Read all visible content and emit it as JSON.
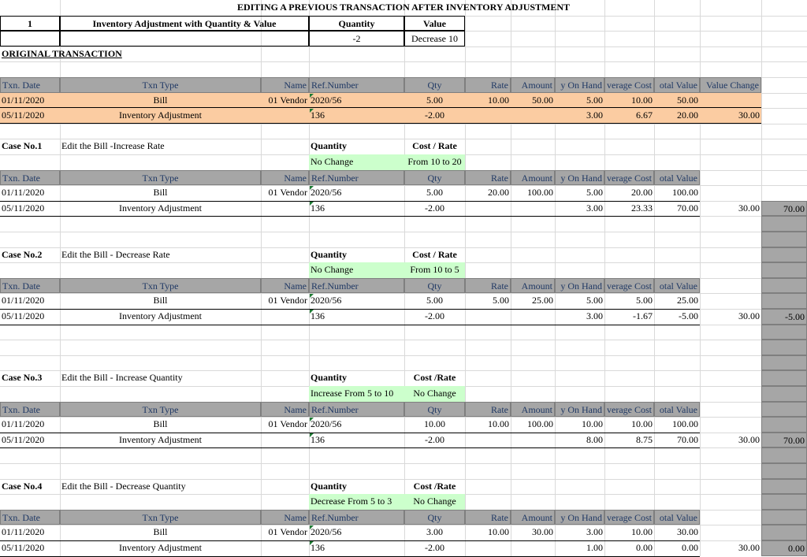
{
  "title": "EDITING A PREVIOUS TRANSACTION AFTER INVENTORY ADJUSTMENT",
  "top": {
    "no": "1",
    "heading": "Inventory Adjustment with Quantity & Value",
    "qty_label": "Quantity",
    "value_label": "Value",
    "qty": "-2",
    "value": "Decrease 10"
  },
  "original_label": "ORIGINAL TRANSACTION",
  "headers": [
    "Txn. Date",
    "Txn Type",
    "Name",
    "Ref.Number",
    "Qty",
    "Rate",
    "Amount",
    "y On Hand",
    "verage Cost",
    "otal Value",
    "Value Change"
  ],
  "original_rows": [
    [
      "01/11/2020",
      "Bill",
      "01 Vendor",
      "2020/56",
      "5.00",
      "10.00",
      "50.00",
      "5.00",
      "10.00",
      "50.00",
      ""
    ],
    [
      "05/11/2020",
      "Inventory Adjustment",
      "",
      "136",
      "-2.00",
      "",
      "",
      "3.00",
      "6.67",
      "20.00",
      "30.00"
    ]
  ],
  "cases": [
    {
      "case_no": "Case No.1",
      "desc": "Edit the Bill -Increase Rate",
      "qty_label": "Quantity",
      "cost_label": "Cost / Rate",
      "qty_note": "No Change",
      "cost_note": "From 10 to 20",
      "rows": [
        [
          "01/11/2020",
          "Bill",
          "01 Vendor",
          "2020/56",
          "5.00",
          "20.00",
          "100.00",
          "5.00",
          "20.00",
          "100.00"
        ],
        [
          "05/11/2020",
          "Inventory Adjustment",
          "",
          "136",
          "-2.00",
          "",
          "",
          "3.00",
          "23.33",
          "70.00"
        ]
      ],
      "value_change": "30.00",
      "result": "70.00"
    },
    {
      "case_no": "Case No.2",
      "desc": "Edit the Bill - Decrease Rate",
      "qty_label": "Quantity",
      "cost_label": "Cost / Rate",
      "qty_note": "No Change",
      "cost_note": "From 10 to 5",
      "rows": [
        [
          "01/11/2020",
          "Bill",
          "01 Vendor",
          "2020/56",
          "5.00",
          "5.00",
          "25.00",
          "5.00",
          "5.00",
          "25.00"
        ],
        [
          "05/11/2020",
          "Inventory Adjustment",
          "",
          "136",
          "-2.00",
          "",
          "",
          "3.00",
          "-1.67",
          "-5.00"
        ]
      ],
      "value_change": "30.00",
      "result": "-5.00"
    },
    {
      "case_no": "Case No.3",
      "desc": "Edit the Bill - Increase Quantity",
      "qty_label": "Quantity",
      "cost_label": "Cost /Rate",
      "qty_note": "Increase From 5 to 10",
      "cost_note": "No Change",
      "rows": [
        [
          "01/11/2020",
          "Bill",
          "01 Vendor",
          "2020/56",
          "10.00",
          "10.00",
          "100.00",
          "10.00",
          "10.00",
          "100.00"
        ],
        [
          "05/11/2020",
          "Inventory Adjustment",
          "",
          "136",
          "-2.00",
          "",
          "",
          "8.00",
          "8.75",
          "70.00"
        ]
      ],
      "value_change": "30.00",
      "result": "70.00"
    },
    {
      "case_no": "Case No.4",
      "desc": "Edit the Bill - Decrease Quantity",
      "qty_label": "Quantity",
      "cost_label": "Cost /Rate",
      "qty_note": "Decrease From 5 to 3",
      "cost_note": "No Change",
      "rows": [
        [
          "01/11/2020",
          "Bill",
          "01 Vendor",
          "2020/56",
          "3.00",
          "10.00",
          "30.00",
          "3.00",
          "10.00",
          "30.00"
        ],
        [
          "05/11/2020",
          "Inventory Adjustment",
          "",
          "136",
          "-2.00",
          "",
          "",
          "1.00",
          "0.00",
          "0.00"
        ]
      ],
      "value_change": "30.00",
      "result": "0.00"
    }
  ],
  "colors": {
    "header": "#a6a6a6",
    "header_text": "#1f3864",
    "original": "#fbcca2",
    "note": "#ccffcc"
  }
}
